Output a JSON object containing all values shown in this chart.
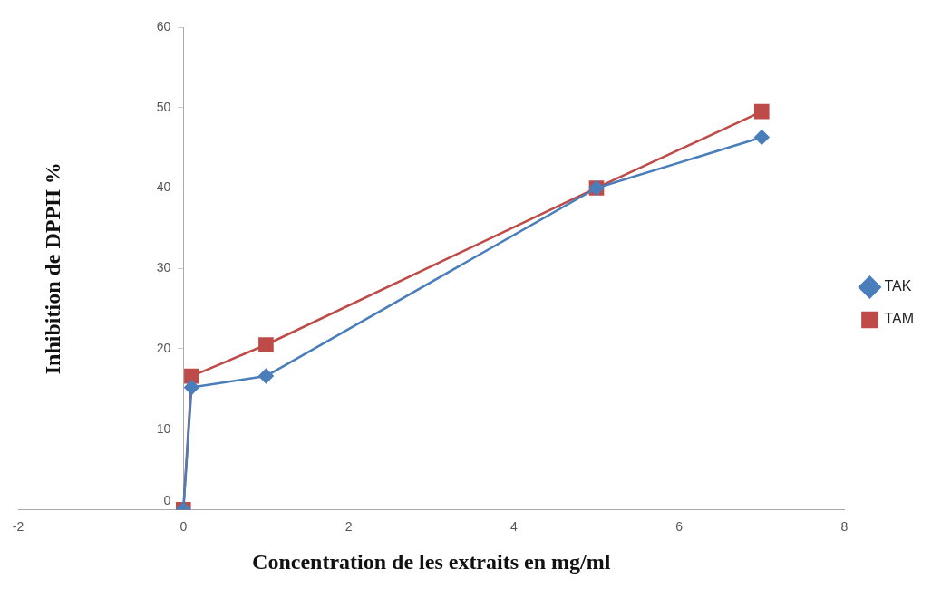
{
  "chart_data": {
    "type": "line",
    "xlabel": "Concentration de les extraits en mg/ml",
    "ylabel": "Inhibition de DPPH %",
    "xlim": [
      -2,
      8
    ],
    "xticks": [
      -2,
      0,
      2,
      4,
      6,
      8
    ],
    "ylim": [
      0,
      60
    ],
    "yticks": [
      0,
      10,
      20,
      30,
      40,
      50,
      60
    ],
    "grid": false,
    "legend": "right",
    "series": [
      {
        "name": "TAK",
        "color": "#4a7ebb",
        "marker": "diamond",
        "x": [
          0,
          0.1,
          1,
          5,
          7
        ],
        "values": [
          0,
          15.2,
          16.6,
          40,
          46.3
        ]
      },
      {
        "name": "TAM",
        "color": "#be4b48",
        "marker": "square",
        "x": [
          0,
          0.1,
          1,
          5,
          7
        ],
        "values": [
          0,
          16.6,
          20.5,
          40,
          49.5
        ]
      }
    ]
  }
}
